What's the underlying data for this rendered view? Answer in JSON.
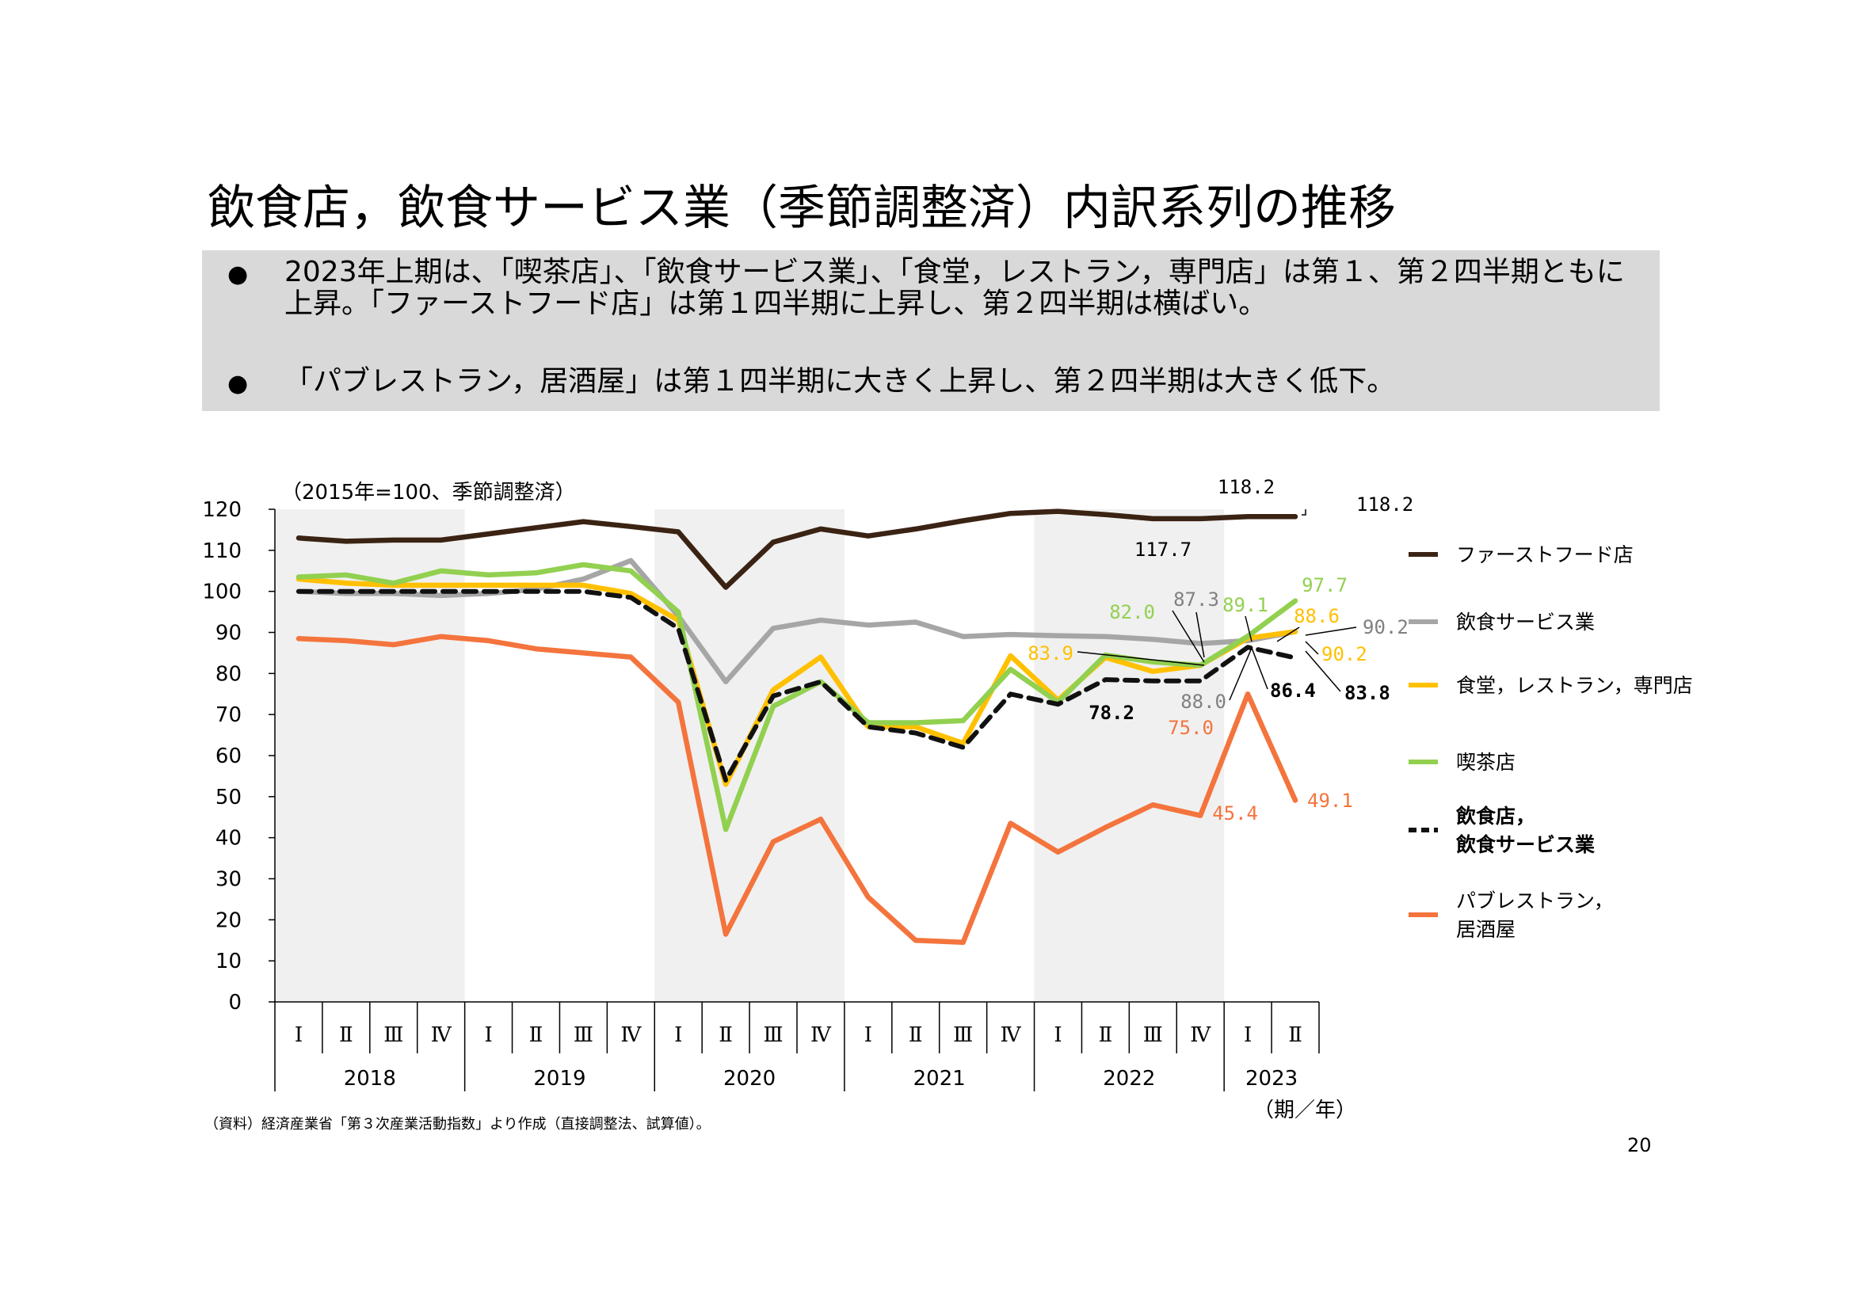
{
  "page": {
    "title": "飲食店，飲食サービス業（季節調整済）内訳系列の推移",
    "bullets": [
      "2023年上期は、「喫茶店」、「飲食サービス業」、「食堂，レストラン，専門店」は第１、第２四半期ともに上昇。「ファーストフード店」は第１四半期に上昇し、第２四半期は横ばい。",
      "「パブレストラン，居酒屋」は第１四半期に大きく上昇し、第２四半期は大きく低下。"
    ],
    "bullet_symbol": "●",
    "source": "（資料）経済産業省「第３次産業活動指数」より作成（直接調整法、試算値）。",
    "page_number": "20"
  },
  "chart_data": {
    "type": "line",
    "note": "（2015年=100、季節調整済）",
    "axis_unit": "（期／年）",
    "ylim": [
      0,
      120
    ],
    "yticks": [
      "0",
      "10",
      "20",
      "30",
      "40",
      "50",
      "60",
      "70",
      "80",
      "90",
      "100",
      "110",
      "120"
    ],
    "quarters": [
      "Ⅰ",
      "Ⅱ",
      "Ⅲ",
      "Ⅳ",
      "Ⅰ",
      "Ⅱ",
      "Ⅲ",
      "Ⅳ",
      "Ⅰ",
      "Ⅱ",
      "Ⅲ",
      "Ⅳ",
      "Ⅰ",
      "Ⅱ",
      "Ⅲ",
      "Ⅳ",
      "Ⅰ",
      "Ⅱ",
      "Ⅲ",
      "Ⅳ",
      "Ⅰ",
      "Ⅱ"
    ],
    "years": [
      "2018",
      "2019",
      "2020",
      "2021",
      "2022",
      "2023"
    ],
    "shaded_years": [
      "2018",
      "2020",
      "2022"
    ],
    "series": [
      {
        "name": "ファーストフード店",
        "color": "#3b2314",
        "dash": false,
        "bold": false,
        "values": [
          113.0,
          112.2,
          112.5,
          112.5,
          114.0,
          115.5,
          117.0,
          115.8,
          114.5,
          101.0,
          112.0,
          115.2,
          113.5,
          115.2,
          117.2,
          119.0,
          119.5,
          118.7,
          117.7,
          117.7,
          118.2,
          118.2
        ]
      },
      {
        "name": "飲食サービス業",
        "color": "#a6a6a6",
        "dash": false,
        "bold": false,
        "values": [
          100.0,
          99.5,
          99.5,
          99.0,
          99.5,
          100.5,
          103.0,
          107.5,
          94.0,
          78.0,
          91.0,
          93.0,
          91.8,
          92.5,
          89.0,
          89.5,
          89.2,
          89.0,
          88.3,
          87.3,
          88.0,
          90.2
        ]
      },
      {
        "name": "食堂，レストラン，専門店",
        "color": "#ffc000",
        "dash": false,
        "bold": false,
        "values": [
          103.0,
          102.0,
          101.5,
          101.5,
          101.5,
          101.5,
          101.5,
          99.5,
          93.0,
          53.0,
          76.0,
          84.0,
          67.0,
          67.0,
          63.0,
          84.3,
          73.5,
          83.9,
          80.5,
          82.0,
          88.6,
          90.2
        ]
      },
      {
        "name": "喫茶店",
        "color": "#92d050",
        "dash": false,
        "bold": false,
        "values": [
          103.5,
          104.0,
          102.0,
          105.0,
          104.0,
          104.5,
          106.5,
          105.0,
          95.0,
          42.0,
          72.0,
          78.0,
          68.0,
          68.0,
          68.5,
          81.0,
          73.0,
          84.5,
          82.8,
          82.0,
          89.1,
          97.7
        ]
      },
      {
        "name": "飲食店，\n飲食サービス業",
        "color": "#111111",
        "dash": true,
        "bold": true,
        "values": [
          100.0,
          100.0,
          100.0,
          100.0,
          100.0,
          100.0,
          100.0,
          98.5,
          91.0,
          54.0,
          74.5,
          78.0,
          67.0,
          65.5,
          62.0,
          75.0,
          72.5,
          78.5,
          78.2,
          78.2,
          86.4,
          83.8
        ]
      },
      {
        "name": "パブレストラン，\n居酒屋",
        "color": "#f4743d",
        "dash": false,
        "bold": false,
        "values": [
          88.5,
          88.0,
          87.0,
          89.0,
          88.0,
          86.0,
          85.0,
          84.0,
          73.0,
          16.5,
          39.0,
          44.5,
          25.5,
          15.0,
          14.5,
          43.5,
          36.5,
          42.5,
          48.0,
          45.4,
          75.0,
          49.1
        ]
      }
    ],
    "data_labels": [
      {
        "text": "118.2",
        "series": 0,
        "color": "#000000",
        "bold": false
      },
      {
        "text": "118.2",
        "series": 0,
        "color": "#000000",
        "bold": false
      },
      {
        "text": "117.7",
        "series": 0,
        "color": "#000000",
        "bold": false
      },
      {
        "text": "97.7",
        "series": 3,
        "color": "#92d050",
        "bold": false
      },
      {
        "text": "82.0",
        "series": 3,
        "color": "#92d050",
        "bold": false
      },
      {
        "text": "87.3",
        "series": 1,
        "color": "#808080",
        "bold": false
      },
      {
        "text": "89.1",
        "series": 3,
        "color": "#92d050",
        "bold": false
      },
      {
        "text": "88.6",
        "series": 2,
        "color": "#ffc000",
        "bold": false
      },
      {
        "text": "90.2",
        "series": 1,
        "color": "#808080",
        "bold": false
      },
      {
        "text": "83.9",
        "series": 2,
        "color": "#ffc000",
        "bold": false
      },
      {
        "text": "90.2",
        "series": 2,
        "color": "#ffc000",
        "bold": false
      },
      {
        "text": "88.0",
        "series": 1,
        "color": "#808080",
        "bold": false
      },
      {
        "text": "86.4",
        "series": 4,
        "color": "#000000",
        "bold": true
      },
      {
        "text": "83.8",
        "series": 4,
        "color": "#000000",
        "bold": true
      },
      {
        "text": "78.2",
        "series": 4,
        "color": "#000000",
        "bold": true
      },
      {
        "text": "75.0",
        "series": 5,
        "color": "#f4743d",
        "bold": false
      },
      {
        "text": "45.4",
        "series": 5,
        "color": "#f4743d",
        "bold": false
      },
      {
        "text": "49.1",
        "series": 5,
        "color": "#f4743d",
        "bold": false
      }
    ]
  }
}
